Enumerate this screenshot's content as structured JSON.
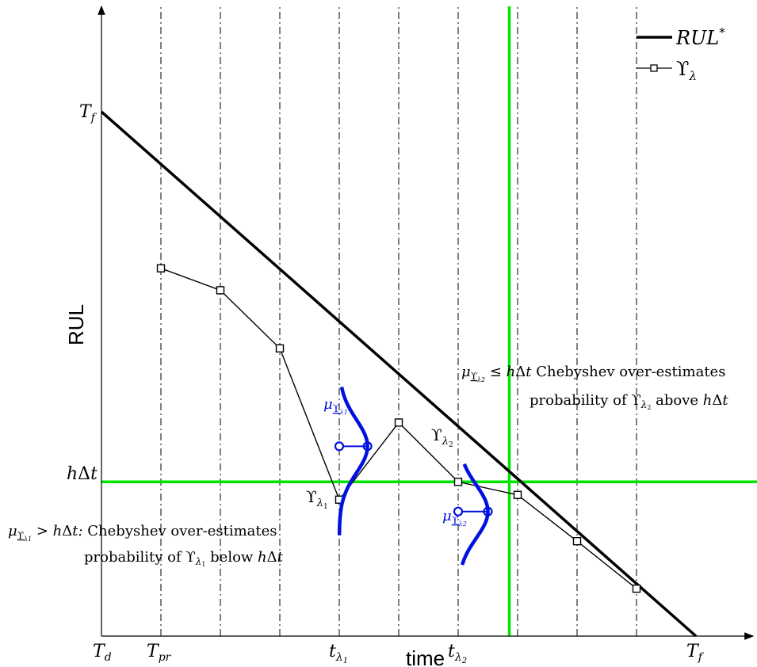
{
  "chart_data": {
    "type": "line",
    "xlabel": "time",
    "ylabel": "RUL",
    "xlim": [
      0,
      10
    ],
    "ylim": [
      0,
      10
    ],
    "x_ticks": [
      {
        "x": 0,
        "text": "T_d"
      },
      {
        "x": 1,
        "text": "T_pr"
      },
      {
        "x": 4,
        "text": "t_λ1"
      },
      {
        "x": 6,
        "text": "t_λ2"
      },
      {
        "x": 10,
        "text": "T_f"
      }
    ],
    "y_ticks": [
      {
        "y": 8.84,
        "text": "T_f"
      },
      {
        "y": 2.6,
        "text": "hΔt"
      }
    ],
    "vertical_gridlines": [
      1,
      2,
      3,
      4,
      5,
      6,
      7,
      8,
      9
    ],
    "threshold_y": 2.6,
    "crossing_x": 6.86,
    "series": [
      {
        "name": "RUL*",
        "style": "thick-line",
        "x": [
          0,
          10
        ],
        "y": [
          8.84,
          0
        ]
      },
      {
        "name": "ϒ_λ",
        "style": "line-square-marker",
        "x": [
          1,
          2,
          3,
          4,
          5,
          6,
          7,
          8,
          9
        ],
        "y": [
          6.2,
          5.83,
          4.85,
          2.3,
          3.6,
          2.6,
          2.38,
          1.6,
          0.8
        ]
      }
    ],
    "distributions": [
      {
        "center_x": 4,
        "mean_y": 3.2,
        "amplitude_x": 0.95,
        "sigma": 0.45,
        "y_range": [
          1.7,
          4.2
        ]
      },
      {
        "center_x": 6,
        "mean_y": 2.1,
        "amplitude_x": 1.0,
        "sigma": 0.45,
        "y_range": [
          1.2,
          2.9
        ]
      }
    ],
    "annotations": {
      "upsilon_l1": "ϒ_λ1",
      "upsilon_l2": "ϒ_λ2",
      "mu_l1": "μ_ϒλ1",
      "mu_l2": "μ_ϒλ2",
      "note_upper": {
        "line1_tail": "Chebyshev over-estimates",
        "line2": "probability of ϒ_λ2 above hΔt"
      },
      "note_lower": {
        "line1_tail": "Chebyshev over-estimates",
        "line2": "probability of ϒ_λ1 below hΔt"
      }
    },
    "colors": {
      "rul": "#000000",
      "upsilon": "#000000",
      "threshold": "#00e600",
      "distribution": "#0010e0",
      "grid": "#000000"
    },
    "legend": {
      "placement": "top-right",
      "entries": [
        "RUL*",
        "ϒ_λ"
      ]
    }
  }
}
